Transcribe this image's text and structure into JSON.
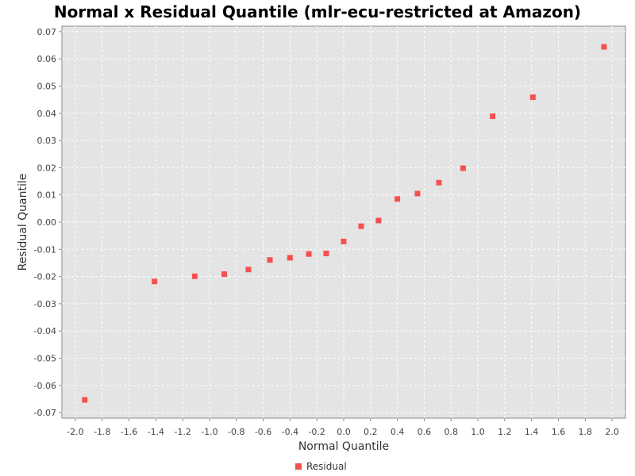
{
  "chart_data": {
    "type": "scatter",
    "title": "Normal x Residual Quantile (mlr-ecu-restricted at Amazon)",
    "xlabel": "Normal Quantile",
    "ylabel": "Residual Quantile",
    "xlim": [
      -2.1,
      2.1
    ],
    "ylim": [
      -0.072,
      0.072
    ],
    "x_ticks": [
      "-2.0",
      "-1.8",
      "-1.6",
      "-1.4",
      "-1.2",
      "-1.0",
      "-0.8",
      "-0.6",
      "-0.4",
      "-0.2",
      "0.0",
      "0.2",
      "0.4",
      "0.6",
      "0.8",
      "1.0",
      "1.2",
      "1.4",
      "1.6",
      "1.8",
      "2.0"
    ],
    "y_ticks": [
      "-0.07",
      "-0.06",
      "-0.05",
      "-0.04",
      "-0.03",
      "-0.02",
      "-0.01",
      "0.00",
      "0.01",
      "0.02",
      "0.03",
      "0.04",
      "0.05",
      "0.06",
      "0.07"
    ],
    "grid": true,
    "legend_position": "bottom-center",
    "series": [
      {
        "name": "Residual",
        "color": "#f55050",
        "points": [
          {
            "x": -1.93,
            "y": -0.0653
          },
          {
            "x": -1.41,
            "y": -0.0218
          },
          {
            "x": -1.11,
            "y": -0.0199
          },
          {
            "x": -0.89,
            "y": -0.0191
          },
          {
            "x": -0.71,
            "y": -0.0174
          },
          {
            "x": -0.55,
            "y": -0.0139
          },
          {
            "x": -0.4,
            "y": -0.0131
          },
          {
            "x": -0.26,
            "y": -0.0117
          },
          {
            "x": -0.13,
            "y": -0.0115
          },
          {
            "x": 0.0,
            "y": -0.0071
          },
          {
            "x": 0.13,
            "y": -0.0015
          },
          {
            "x": 0.26,
            "y": 0.0006
          },
          {
            "x": 0.4,
            "y": 0.0085
          },
          {
            "x": 0.55,
            "y": 0.0105
          },
          {
            "x": 0.71,
            "y": 0.0145
          },
          {
            "x": 0.89,
            "y": 0.0198
          },
          {
            "x": 1.11,
            "y": 0.0389
          },
          {
            "x": 1.41,
            "y": 0.0459
          },
          {
            "x": 1.94,
            "y": 0.0644
          }
        ]
      }
    ]
  },
  "colors": {
    "plot_background": "#e4e4e4",
    "gridline": "#ffffff",
    "marker": "#f55050"
  }
}
